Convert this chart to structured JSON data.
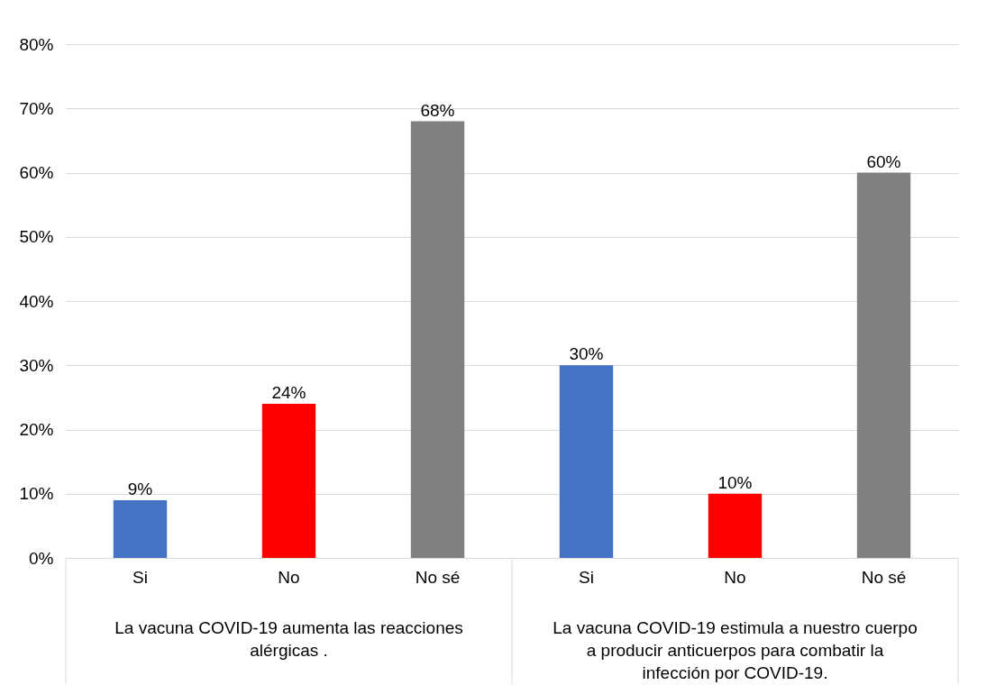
{
  "chart_data": {
    "type": "bar",
    "categories": [
      "Si",
      "No",
      "No sé",
      "Si",
      "No",
      "No sé"
    ],
    "values": [
      9,
      24,
      68,
      30,
      10,
      60
    ],
    "colors": [
      "#4472c4",
      "#ff0000",
      "#808080",
      "#4472c4",
      "#ff0000",
      "#808080"
    ],
    "value_labels": [
      "9%",
      "24%",
      "68%",
      "30%",
      "10%",
      "60%"
    ],
    "ylim": [
      0,
      80
    ],
    "yticks": [
      {
        "value": 0,
        "label": "0%"
      },
      {
        "value": 10,
        "label": "10%"
      },
      {
        "value": 20,
        "label": "20%"
      },
      {
        "value": 30,
        "label": "30%"
      },
      {
        "value": 40,
        "label": "40%"
      },
      {
        "value": 50,
        "label": "50%"
      },
      {
        "value": 60,
        "label": "60%"
      },
      {
        "value": 70,
        "label": "70%"
      },
      {
        "value": 80,
        "label": "80%"
      }
    ],
    "grid": "y",
    "annotations": [
      "La vacuna COVID-19 aumenta las reacciones alérgicas .",
      "La vacuna COVID-19 estimula a nuestro cuerpo a producir anticuerpos para combatir la infección por COVID-19."
    ]
  }
}
